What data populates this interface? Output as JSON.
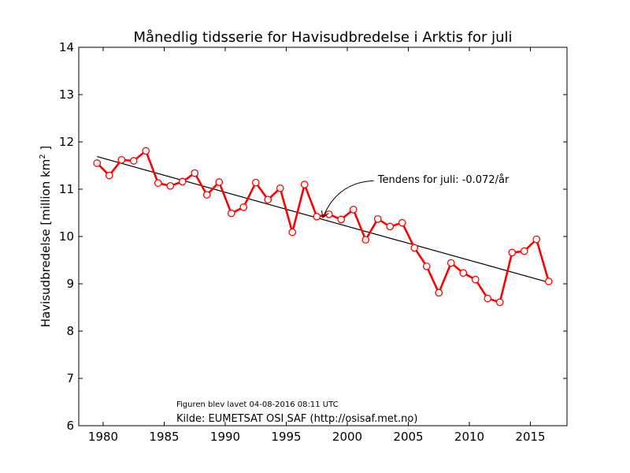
{
  "chart_data": {
    "type": "line",
    "title": "Månedlig tidsserie for Havisudbredelse i Arktis for juli",
    "xlabel": "",
    "ylabel": "Havisudbredelse [million km",
    "ylabel_sup": "2",
    "ylabel_end": " ]",
    "xlim": [
      1978,
      2018
    ],
    "ylim": [
      6,
      14
    ],
    "x_ticks": [
      1980,
      1985,
      1990,
      1995,
      2000,
      2005,
      2010,
      2015
    ],
    "y_ticks": [
      6,
      7,
      8,
      9,
      10,
      11,
      12,
      13,
      14
    ],
    "grid": false,
    "series": [
      {
        "color": "#ff0000",
        "x": [
          1979.5,
          1980.5,
          1981.5,
          1982.5,
          1983.5,
          1984.5,
          1985.5,
          1986.5,
          1987.5,
          1988.5,
          1989.5,
          1990.5,
          1991.5,
          1992.5,
          1993.5,
          1994.5,
          1995.5,
          1996.5,
          1997.5,
          1998.5,
          1999.5,
          2000.5,
          2001.5,
          2002.5,
          2003.5,
          2004.5,
          2005.5,
          2006.5,
          2007.5,
          2008.5,
          2009.5,
          2010.5,
          2011.5,
          2012.5,
          2013.5,
          2014.5,
          2015.5,
          2016.5
        ],
        "values": [
          11.55,
          11.29,
          11.62,
          11.6,
          11.81,
          11.13,
          11.07,
          11.16,
          11.34,
          10.88,
          11.15,
          10.49,
          10.62,
          11.14,
          10.78,
          11.02,
          10.09,
          11.1,
          10.42,
          10.47,
          10.36,
          10.57,
          9.93,
          10.37,
          10.21,
          10.29,
          9.76,
          9.37,
          8.81,
          9.44,
          9.23,
          9.09,
          8.69,
          8.61,
          9.66,
          9.69,
          9.94,
          9.05
        ]
      }
    ],
    "trend": {
      "color": "#000000",
      "x": [
        1979.5,
        2016.5
      ],
      "values": [
        11.69,
        9.03
      ]
    },
    "annotation": {
      "text": "Tendens for juli: -0.072/år",
      "x": 2002.5,
      "y": 11.13,
      "arrow_to_x": 1998,
      "arrow_to_y": 10.4
    },
    "footnote_small": "Figuren blev lavet 04-08-2016 08:11 UTC",
    "footnote": "Kilde: EUMETSAT OSI SAF (http://osisaf.met.no)"
  }
}
